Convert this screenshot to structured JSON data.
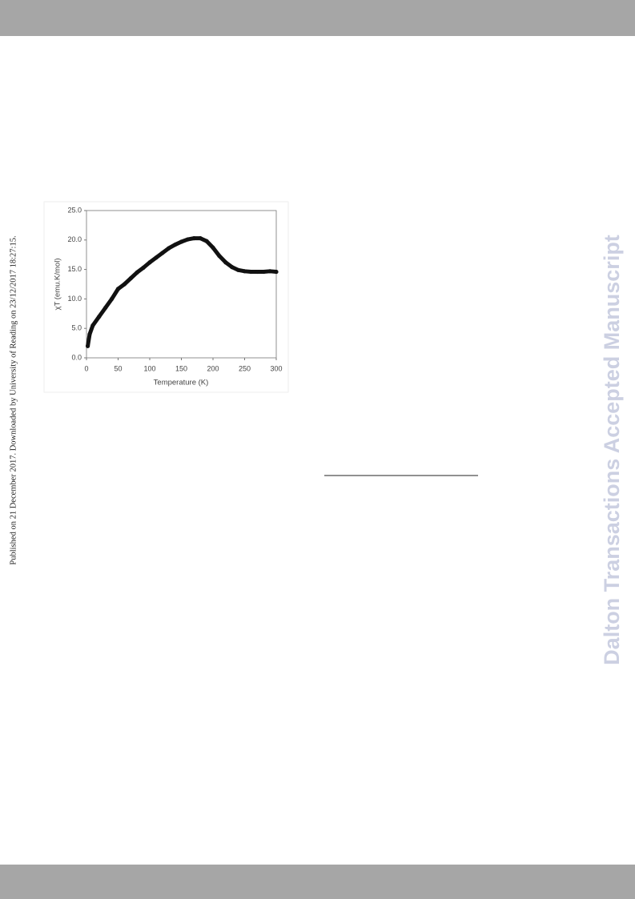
{
  "side_note": "Published on 21 December 2017. Downloaded by University of Reading on 23/12/2017 18:27:15.",
  "watermark": "Dalton Transactions Accepted Manuscript",
  "chart_data": {
    "type": "line",
    "x_label": "Temperature (K)",
    "y_label": "χT (emu.K/mol)",
    "x": [
      2,
      5,
      10,
      20,
      30,
      40,
      50,
      60,
      70,
      80,
      90,
      100,
      110,
      120,
      130,
      140,
      150,
      160,
      170,
      180,
      190,
      200,
      210,
      220,
      230,
      240,
      250,
      260,
      270,
      280,
      290,
      300
    ],
    "series": [
      {
        "color": "#111111",
        "values": [
          2,
          4,
          5.5,
          7,
          8.5,
          10,
          11.7,
          12.5,
          13.5,
          14.5,
          15.3,
          16.2,
          17,
          17.8,
          18.6,
          19.2,
          19.7,
          20.1,
          20.3,
          20.3,
          19.8,
          18.7,
          17.3,
          16.2,
          15.4,
          14.9,
          14.7,
          14.6,
          14.6,
          14.6,
          14.7,
          14.6
        ]
      }
    ],
    "xlim": [
      0,
      300
    ],
    "xticks": [
      0,
      50,
      100,
      150,
      200,
      250,
      300
    ],
    "ylim": [
      0,
      25
    ],
    "yticks": [
      {
        "value": 0,
        "label": "0.0"
      },
      {
        "value": 5,
        "label": "5.0"
      },
      {
        "value": 10,
        "label": "10.0"
      },
      {
        "value": 15,
        "label": "15.0"
      },
      {
        "value": 20,
        "label": "20.0"
      },
      {
        "value": 25,
        "label": "25.0"
      }
    ],
    "grid": false
  }
}
